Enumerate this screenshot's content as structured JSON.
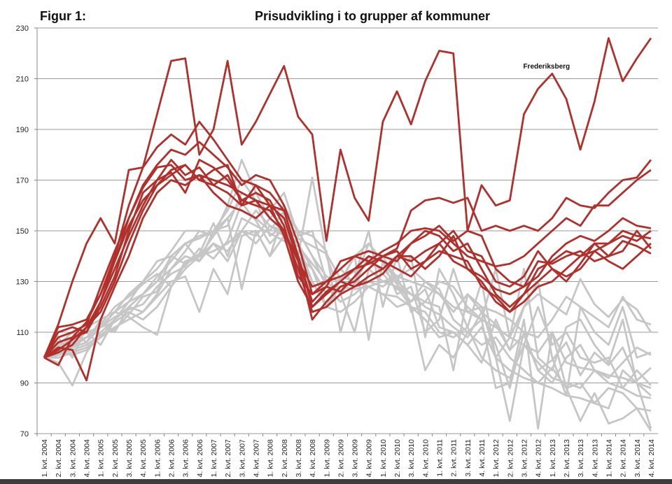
{
  "chart_data": {
    "type": "line",
    "figure_label": "Figur 1:",
    "title": "Prisudvikling i to grupper af kommuner",
    "xlabel": "",
    "ylabel": "",
    "ylim": [
      70,
      230
    ],
    "yticks": [
      "70",
      "90",
      "110",
      "130",
      "150",
      "170",
      "190",
      "210",
      "230"
    ],
    "grid": true,
    "legend": "none",
    "colors": {
      "group_red": "#b1302b",
      "group_grey": "#c6c6c6"
    },
    "categories": [
      "1. kvt. 2004",
      "2. kvt. 2004",
      "3. kvt. 2004",
      "4. kvt. 2004",
      "1. kvt. 2005",
      "2. kvt. 2005",
      "3. kvt. 2005",
      "4. kvt. 2005",
      "1. kvt. 2006",
      "2. kvt. 2006",
      "3. kvt. 2006",
      "4. kvt. 2006",
      "1. kvt. 2007",
      "2. kvt. 2007",
      "3. kvt. 2007",
      "4. kvt. 2007",
      "1. kvt. 2008",
      "2. kvt. 2008",
      "3. kvt. 2008",
      "4. kvt. 2008",
      "1. kvt. 2009",
      "2. kvt. 2009",
      "3. kvt. 2009",
      "4. kvt. 2009",
      "1. kvt. 2010",
      "2. kvt. 2010",
      "3. kvt. 2010",
      "4. kvt. 2010",
      "1. kvt. 2011",
      "2. kvt. 2011",
      "3. kvt. 2011",
      "4. kvt. 2011",
      "1. kvt. 2012",
      "2. kvt. 2012",
      "3. kvt. 2012",
      "4. kvt. 2012",
      "1. kvt. 2013",
      "2. kvt. 2013",
      "3. kvt. 2013",
      "4. kvt. 2013",
      "1. kvt. 2014",
      "2. kvt. 2014",
      "3. kvt. 2014",
      "4. kvt. 2014"
    ],
    "annotations": [
      {
        "text": "Frederiksberg",
        "x_index": 36,
        "y": 214
      }
    ],
    "series": [
      {
        "name": "grey-1",
        "group": "grey",
        "values": [
          100,
          98,
          89,
          102,
          110,
          115,
          120,
          125,
          130,
          140,
          145,
          148,
          150,
          152,
          165,
          162,
          155,
          150,
          145,
          135,
          125,
          130,
          140,
          145,
          138,
          132,
          120,
          115,
          108,
          110,
          105,
          112,
          100,
          95,
          92,
          90,
          88,
          85,
          84,
          82,
          88,
          86,
          80,
          79
        ]
      },
      {
        "name": "grey-2",
        "group": "grey",
        "values": [
          100,
          104,
          108,
          110,
          112,
          118,
          125,
          130,
          135,
          142,
          150,
          150,
          148,
          160,
          178,
          165,
          155,
          150,
          140,
          171,
          140,
          125,
          110,
          135,
          140,
          130,
          125,
          122,
          120,
          95,
          125,
          118,
          105,
          88,
          110,
          95,
          90,
          100,
          105,
          95,
          90,
          88,
          85,
          84
        ]
      },
      {
        "name": "grey-3",
        "group": "grey",
        "values": [
          100,
          106,
          105,
          108,
          112,
          118,
          122,
          130,
          138,
          140,
          145,
          138,
          150,
          155,
          162,
          160,
          158,
          165,
          148,
          150,
          130,
          125,
          132,
          150,
          120,
          140,
          118,
          122,
          130,
          128,
          120,
          115,
          135,
          108,
          135,
          100,
          95,
          112,
          115,
          105,
          98,
          115,
          90,
          72
        ]
      },
      {
        "name": "grey-4",
        "group": "grey",
        "values": [
          100,
          102,
          101,
          103,
          108,
          112,
          115,
          118,
          124,
          130,
          132,
          118,
          135,
          125,
          148,
          150,
          140,
          148,
          150,
          148,
          142,
          110,
          130,
          145,
          138,
          125,
          128,
          110,
          115,
          135,
          118,
          120,
          100,
          75,
          105,
          120,
          105,
          110,
          100,
          98,
          100,
          88,
          95,
          89
        ]
      },
      {
        "name": "grey-5",
        "group": "grey",
        "values": [
          100,
          101,
          104,
          106,
          112,
          114,
          118,
          115,
          120,
          128,
          135,
          140,
          142,
          145,
          150,
          145,
          152,
          150,
          145,
          135,
          125,
          128,
          127,
          128,
          130,
          132,
          130,
          128,
          125,
          120,
          118,
          115,
          112,
          108,
          105,
          102,
          110,
          98,
          96,
          95,
          93,
          92,
          90,
          88
        ]
      },
      {
        "name": "grey-6",
        "group": "grey",
        "values": [
          100,
          108,
          100,
          112,
          115,
          110,
          120,
          118,
          125,
          135,
          142,
          150,
          148,
          155,
          127,
          150,
          140,
          157,
          150,
          140,
          132,
          130,
          140,
          107,
          138,
          130,
          140,
          108,
          135,
          125,
          112,
          130,
          100,
          108,
          120,
          130,
          100,
          85,
          120,
          110,
          105,
          120,
          100,
          102
        ]
      },
      {
        "name": "grey-7",
        "group": "grey",
        "values": [
          100,
          103,
          107,
          110,
          105,
          115,
          122,
          125,
          130,
          135,
          140,
          138,
          145,
          142,
          150,
          158,
          152,
          148,
          145,
          130,
          120,
          118,
          122,
          128,
          125,
          120,
          122,
          130,
          127,
          115,
          110,
          105,
          108,
          100,
          95,
          90,
          96,
          88,
          90,
          82,
          80,
          95,
          90,
          85
        ]
      },
      {
        "name": "grey-8",
        "group": "grey",
        "values": [
          100,
          105,
          110,
          106,
          115,
          118,
          116,
          112,
          109,
          128,
          138,
          140,
          145,
          138,
          150,
          148,
          155,
          160,
          150,
          140,
          128,
          122,
          125,
          130,
          128,
          132,
          135,
          130,
          125,
          118,
          125,
          120,
          118,
          115,
          110,
          108,
          115,
          124,
          120,
          116,
          112,
          124,
          115,
          113
        ]
      },
      {
        "name": "grey-9",
        "group": "grey",
        "values": [
          100,
          100,
          102,
          104,
          108,
          115,
          120,
          125,
          132,
          138,
          145,
          147,
          150,
          158,
          170,
          162,
          148,
          152,
          140,
          130,
          120,
          128,
          130,
          135,
          130,
          128,
          120,
          95,
          105,
          100,
          110,
          115,
          88,
          90,
          115,
          72,
          110,
          88,
          75,
          86,
          74,
          76,
          80,
          71
        ]
      },
      {
        "name": "grey-10",
        "group": "grey",
        "values": [
          100,
          101,
          103,
          105,
          109,
          111,
          117,
          124,
          126,
          140,
          137,
          140,
          148,
          160,
          158,
          155,
          150,
          158,
          140,
          135,
          120,
          132,
          130,
          128,
          125,
          124,
          120,
          118,
          110,
          108,
          112,
          100,
          95,
          92,
          105,
          98,
          92,
          90,
          88,
          95,
          92,
          98,
          104,
          101
        ]
      },
      {
        "name": "grey-11",
        "group": "grey",
        "values": [
          100,
          106,
          104,
          108,
          113,
          120,
          124,
          129,
          133,
          128,
          137,
          141,
          153,
          140,
          155,
          152,
          149,
          146,
          144,
          137,
          130,
          135,
          129,
          140,
          133,
          127,
          125,
          120,
          117,
          112,
          108,
          118,
          113,
          103,
          109,
          95,
          99,
          106,
          93,
          102,
          97,
          104,
          91,
          96
        ]
      },
      {
        "name": "grey-12",
        "group": "grey",
        "values": [
          100,
          102,
          106,
          108,
          112,
          116,
          119,
          121,
          128,
          133,
          136,
          143,
          139,
          146,
          161,
          154,
          145,
          151,
          147,
          144,
          141,
          131,
          134,
          137,
          135,
          129,
          122,
          127,
          112,
          110,
          105,
          98,
          115,
          103,
          120,
          125,
          121,
          117,
          131,
          121,
          116,
          123,
          119,
          110
        ]
      },
      {
        "name": "red-2",
        "group": "red",
        "values": [
          100,
          112,
          113,
          115,
          125,
          140,
          160,
          175,
          183,
          188,
          184,
          193,
          186,
          178,
          170,
          168,
          165,
          158,
          140,
          122,
          128,
          138,
          140,
          142,
          140,
          143,
          158,
          162,
          163,
          161,
          163,
          150,
          152,
          150,
          152,
          150,
          155,
          163,
          160,
          159,
          165,
          170,
          171,
          178
        ]
      },
      {
        "name": "red-3",
        "group": "red",
        "values": [
          100,
          108,
          110,
          113,
          128,
          142,
          155,
          168,
          176,
          182,
          180,
          185,
          180,
          175,
          168,
          172,
          170,
          160,
          145,
          125,
          130,
          135,
          140,
          138,
          142,
          145,
          150,
          151,
          150,
          145,
          140,
          138,
          136,
          137,
          140,
          145,
          150,
          155,
          152,
          160,
          160,
          165,
          170,
          174
        ]
      },
      {
        "name": "red-4",
        "group": "red",
        "values": [
          100,
          97,
          108,
          110,
          122,
          135,
          148,
          160,
          170,
          178,
          172,
          175,
          168,
          172,
          162,
          160,
          158,
          150,
          135,
          118,
          120,
          125,
          128,
          130,
          133,
          140,
          145,
          148,
          152,
          146,
          150,
          148,
          135,
          130,
          128,
          132,
          140,
          145,
          148,
          146,
          150,
          155,
          152,
          151
        ]
      },
      {
        "name": "red-5",
        "group": "red",
        "values": [
          100,
          102,
          105,
          112,
          118,
          130,
          145,
          158,
          168,
          174,
          176,
          170,
          168,
          165,
          160,
          162,
          155,
          150,
          138,
          115,
          122,
          128,
          130,
          135,
          140,
          138,
          145,
          150,
          148,
          142,
          145,
          135,
          125,
          120,
          125,
          135,
          138,
          142,
          140,
          142,
          145,
          148,
          146,
          150
        ]
      },
      {
        "name": "red-6",
        "group": "red",
        "values": [
          100,
          104,
          103,
          91,
          115,
          128,
          140,
          155,
          165,
          170,
          168,
          172,
          165,
          160,
          158,
          155,
          160,
          148,
          130,
          120,
          125,
          130,
          128,
          132,
          135,
          140,
          138,
          142,
          145,
          138,
          135,
          130,
          122,
          118,
          122,
          128,
          130,
          135,
          140,
          145,
          140,
          142,
          150,
          143
        ]
      },
      {
        "name": "red-7",
        "group": "red",
        "values": [
          100,
          110,
          112,
          110,
          120,
          132,
          150,
          165,
          170,
          173,
          165,
          178,
          175,
          170,
          162,
          165,
          162,
          152,
          132,
          125,
          128,
          126,
          132,
          138,
          135,
          140,
          140,
          135,
          140,
          148,
          135,
          132,
          127,
          125,
          128,
          138,
          137,
          140,
          142,
          138,
          140,
          146,
          144,
          141
        ]
      },
      {
        "name": "red-8",
        "group": "red",
        "values": [
          100,
          106,
          108,
          114,
          125,
          138,
          152,
          162,
          168,
          172,
          176,
          170,
          174,
          176,
          160,
          168,
          160,
          155,
          138,
          128,
          130,
          132,
          135,
          137,
          140,
          142,
          135,
          138,
          142,
          140,
          138,
          128,
          124,
          118,
          125,
          130,
          135,
          132,
          135,
          142,
          138,
          135,
          140,
          145
        ]
      },
      {
        "name": "red-9",
        "group": "red",
        "values": [
          100,
          103,
          107,
          112,
          122,
          138,
          155,
          167,
          175,
          176,
          170,
          172,
          170,
          168,
          165,
          162,
          160,
          158,
          140,
          120,
          126,
          130,
          135,
          140,
          138,
          135,
          132,
          138,
          145,
          150,
          142,
          140,
          130,
          128,
          132,
          142,
          135,
          130,
          137,
          145,
          145,
          150,
          148,
          147
        ]
      },
      {
        "name": "Frederiksberg",
        "group": "red",
        "values": [
          100,
          113,
          130,
          145,
          155,
          145,
          174,
          175,
          196,
          217,
          218,
          180,
          190,
          217,
          184,
          193,
          204,
          215,
          195,
          188,
          146,
          182,
          163,
          154,
          193,
          205,
          192,
          209,
          221,
          220,
          150,
          168,
          160,
          162,
          196,
          206,
          212,
          202,
          182,
          201,
          226,
          209,
          218,
          226
        ]
      }
    ]
  }
}
